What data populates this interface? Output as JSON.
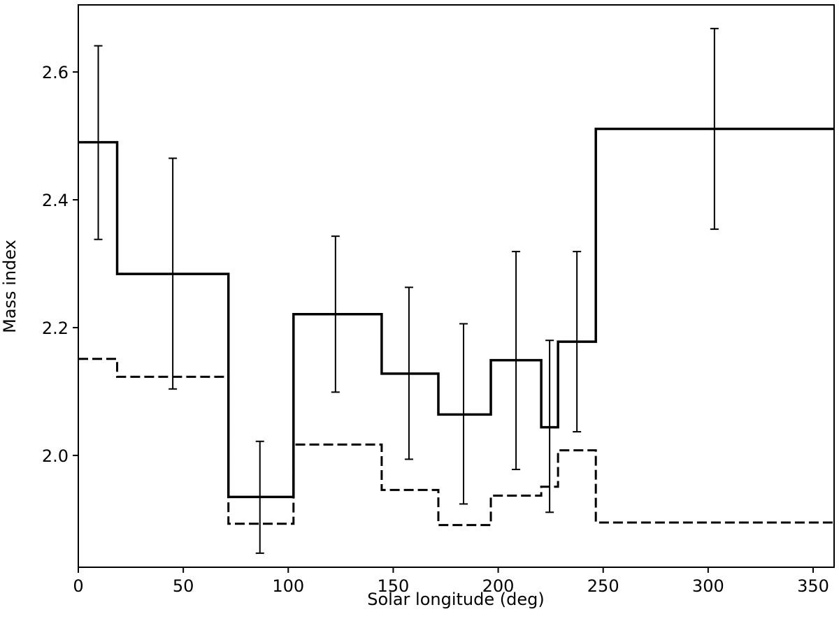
{
  "chart_data": {
    "type": "line",
    "title": "",
    "xlabel": "Solar longitude (deg)",
    "ylabel": "Mass index",
    "xlim": [
      0,
      360
    ],
    "ylim": [
      1.825,
      2.705
    ],
    "xticks": [
      0,
      50,
      100,
      150,
      200,
      250,
      300,
      350
    ],
    "yticks": [
      2.0,
      2.2,
      2.4,
      2.6
    ],
    "xtick_labels": [
      "0",
      "50",
      "100",
      "150",
      "200",
      "250",
      "300",
      "350"
    ],
    "ytick_labels": [
      "2.0",
      "2.2",
      "2.4",
      "2.6"
    ],
    "grid": false,
    "legend": "none",
    "bins": [
      {
        "x_start": 0,
        "x_end": 18.5,
        "solid": 2.49,
        "dashed": 2.151
      },
      {
        "x_start": 18.5,
        "x_end": 71.5,
        "solid": 2.284,
        "dashed": 2.123
      },
      {
        "x_start": 71.5,
        "x_end": 102.5,
        "solid": 1.935,
        "dashed": 1.893
      },
      {
        "x_start": 102.5,
        "x_end": 144.5,
        "solid": 2.221,
        "dashed": 2.017
      },
      {
        "x_start": 144.5,
        "x_end": 171.5,
        "solid": 2.128,
        "dashed": 1.946
      },
      {
        "x_start": 171.5,
        "x_end": 196.5,
        "solid": 2.064,
        "dashed": 1.891
      },
      {
        "x_start": 196.5,
        "x_end": 220.5,
        "solid": 2.149,
        "dashed": 1.937
      },
      {
        "x_start": 220.5,
        "x_end": 228.5,
        "solid": 2.044,
        "dashed": 1.951
      },
      {
        "x_start": 228.5,
        "x_end": 246.5,
        "solid": 2.178,
        "dashed": 2.008
      },
      {
        "x_start": 246.5,
        "x_end": 360,
        "solid": 2.511,
        "dashed": 1.895
      }
    ],
    "error_bars": [
      {
        "x": 9.5,
        "y": 2.49,
        "low": 2.338,
        "high": 2.641
      },
      {
        "x": 45,
        "y": 2.284,
        "low": 2.104,
        "high": 2.465
      },
      {
        "x": 86.5,
        "y": 1.935,
        "low": 1.847,
        "high": 2.022
      },
      {
        "x": 122.5,
        "y": 2.221,
        "low": 2.099,
        "high": 2.343
      },
      {
        "x": 157.5,
        "y": 2.128,
        "low": 1.994,
        "high": 2.263
      },
      {
        "x": 183.5,
        "y": 2.064,
        "low": 1.924,
        "high": 2.206
      },
      {
        "x": 208.5,
        "y": 2.149,
        "low": 1.978,
        "high": 2.319
      },
      {
        "x": 224.5,
        "y": 2.044,
        "low": 1.911,
        "high": 2.18
      },
      {
        "x": 237.5,
        "y": 2.178,
        "low": 2.037,
        "high": 2.319
      },
      {
        "x": 303,
        "y": 2.511,
        "low": 2.354,
        "high": 2.668
      }
    ]
  }
}
